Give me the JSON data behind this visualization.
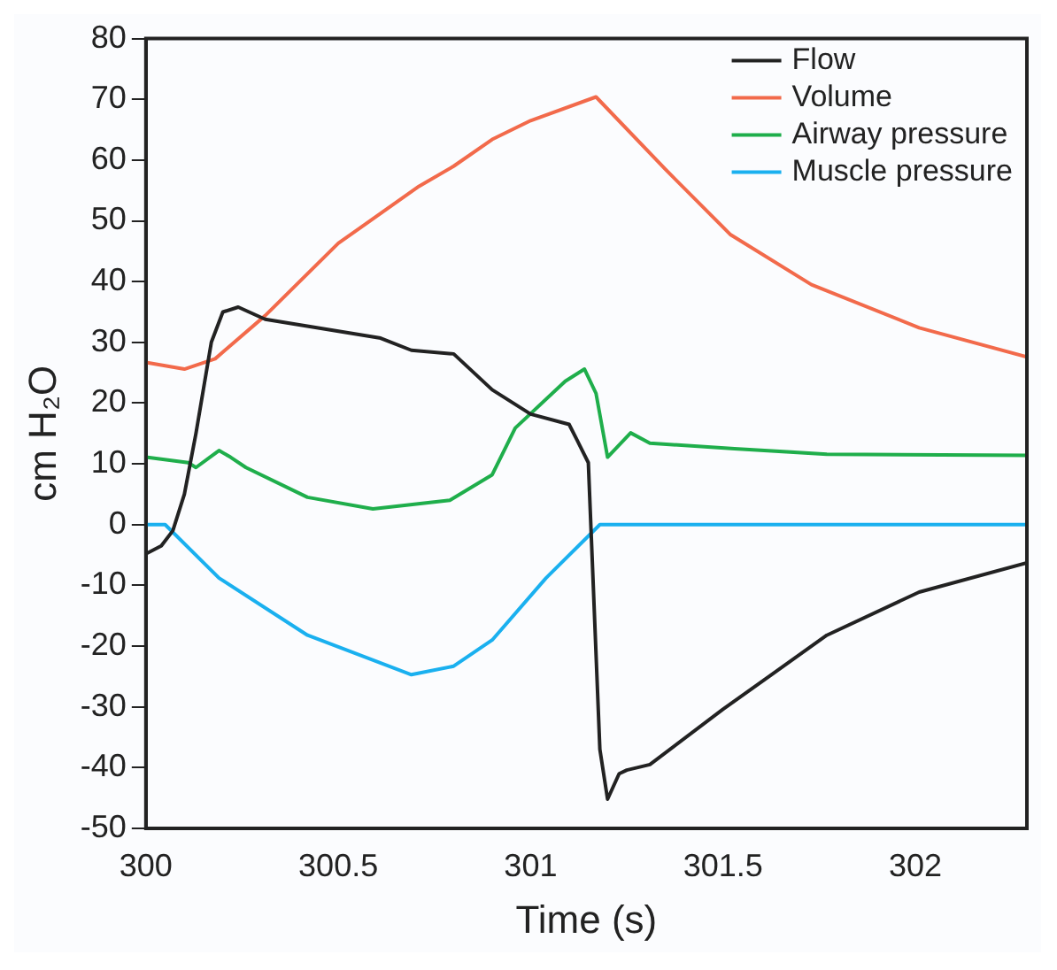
{
  "chart_data": {
    "type": "line",
    "xlabel": "Time (s)",
    "ylabel": "cm H₂O",
    "xlim": [
      300,
      302.29
    ],
    "xticks": [
      300,
      300.5,
      301,
      301.5,
      302
    ],
    "ylim": [
      -50,
      80
    ],
    "yticks": [
      -50,
      -40,
      -30,
      -20,
      -10,
      0,
      10,
      20,
      30,
      40,
      50,
      60,
      70,
      80
    ],
    "grid": false,
    "legend": "top right",
    "marker": "none",
    "line_style": "solid",
    "series": [
      {
        "name": "Flow",
        "color": "#222222",
        "x": [
          300,
          300.04,
          300.07,
          300.1,
          300.13,
          300.17,
          300.2,
          300.24,
          300.31,
          300.61,
          300.69,
          300.8,
          300.9,
          301,
          301.1,
          301.12,
          301.15,
          301.18,
          301.2,
          301.23,
          301.25,
          301.31,
          301.5,
          301.77,
          302.01,
          302.29
        ],
        "values": [
          -4.8,
          -3.5,
          -1,
          5,
          15,
          30,
          35,
          35.8,
          33.8,
          30.7,
          28.7,
          28.1,
          22.2,
          18.2,
          16.5,
          14,
          10.2,
          -37,
          -45.2,
          -41,
          -40.4,
          -39.5,
          -30.4,
          -18.2,
          -11.1,
          -6.3
        ]
      },
      {
        "name": "Volume",
        "color": "#f26a4b",
        "x": [
          300,
          300.1,
          300.18,
          300.31,
          300.5,
          300.71,
          300.8,
          300.9,
          301,
          301.17,
          301.35,
          301.52,
          301.73,
          302.01,
          302.29
        ],
        "values": [
          26.7,
          25.6,
          27.3,
          34.4,
          46.3,
          55.7,
          59,
          63.4,
          66.5,
          70.4,
          58.5,
          47.7,
          39.5,
          32.4,
          27.6
        ]
      },
      {
        "name": "Airway pressure",
        "color": "#1fae4b",
        "x": [
          300,
          300.11,
          300.13,
          300.19,
          300.22,
          300.26,
          300.42,
          300.59,
          300.79,
          300.9,
          300.96,
          301.09,
          301.14,
          301.17,
          301.2,
          301.26,
          301.31,
          301.53,
          301.77,
          302.29
        ],
        "values": [
          11.1,
          10.2,
          9.4,
          12.2,
          11.1,
          9.4,
          4.5,
          2.6,
          4,
          8.2,
          15.9,
          23.6,
          25.6,
          21.6,
          11.1,
          15.1,
          13.4,
          12.5,
          11.6,
          11.4
        ]
      },
      {
        "name": "Muscle pressure",
        "color": "#1ab0ef",
        "x": [
          300,
          300.05,
          300.19,
          300.42,
          300.69,
          300.8,
          300.9,
          301.04,
          301.18,
          302.29
        ],
        "values": [
          0,
          0,
          -8.8,
          -18.2,
          -24.7,
          -23.3,
          -19,
          -8.8,
          0,
          0
        ]
      }
    ]
  }
}
